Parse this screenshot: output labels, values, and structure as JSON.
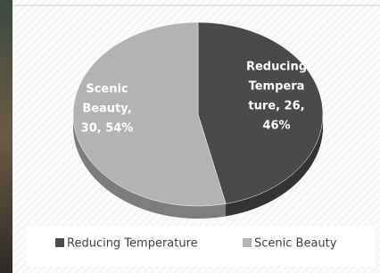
{
  "chart_data": {
    "type": "pie",
    "categories": [
      "Reducing Temperature",
      "Scenic Beauty"
    ],
    "values": [
      26,
      30
    ],
    "colors": [
      "#4a4a4a",
      "#b3b3b3"
    ],
    "value_labels": [
      [
        "Reducing",
        "Tempera",
        "ture, 26,",
        "46%"
      ],
      [
        "Scenic",
        "Beauty,",
        "30, 54%"
      ]
    ],
    "legend": "bottom"
  }
}
